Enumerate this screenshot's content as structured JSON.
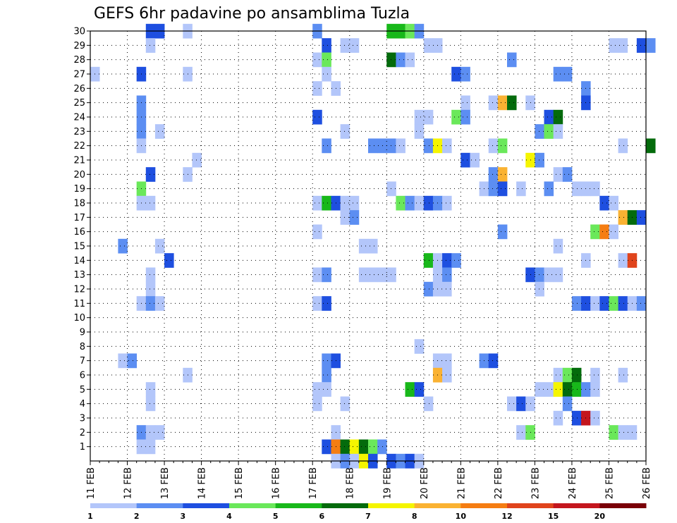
{
  "chart_data": {
    "type": "heatmap",
    "title": "GEFS 6hr padavine po ansamblima Tuzla",
    "xlabel": "",
    "ylabel": "",
    "x_ticks": [
      "11 FEB",
      "12 FEB",
      "13 FEB",
      "14 FEB",
      "15 FEB",
      "16 FEB",
      "17 FEB",
      "18 FEB",
      "19 FEB",
      "20 FEB",
      "21 FEB",
      "22 FEB",
      "23 FEB",
      "24 FEB",
      "25 FEB",
      "26 FEB"
    ],
    "y_ticks": [
      1,
      2,
      3,
      4,
      5,
      6,
      7,
      8,
      9,
      10,
      11,
      12,
      13,
      14,
      15,
      16,
      17,
      18,
      19,
      20,
      21,
      22,
      23,
      24,
      25,
      26,
      27,
      28,
      29,
      30
    ],
    "x_range_days": [
      11,
      26
    ],
    "y_range": [
      0,
      30
    ],
    "grid": "dotted",
    "colorbar": {
      "labels": [
        "1",
        "2",
        "3",
        "4",
        "5",
        "6",
        "7",
        "8",
        "10",
        "12",
        "15",
        "20"
      ],
      "colors": [
        "#b3c6fa",
        "#5c8ef2",
        "#1e4fe0",
        "#6ae85a",
        "#18b81a",
        "#046b0c",
        "#f5f500",
        "#fab232",
        "#f57d12",
        "#e0441c",
        "#c4161e",
        "#7a0008"
      ]
    },
    "cells": [
      [
        30,
        12.5,
        2
      ],
      [
        30,
        12.75,
        2
      ],
      [
        30,
        13.5,
        0
      ],
      [
        30,
        17.0,
        1
      ],
      [
        30,
        19.0,
        4
      ],
      [
        30,
        19.25,
        4
      ],
      [
        30,
        19.5,
        3
      ],
      [
        30,
        19.75,
        1
      ],
      [
        29,
        12.5,
        0
      ],
      [
        29,
        17.25,
        2
      ],
      [
        29,
        17.75,
        0
      ],
      [
        29,
        18.0,
        0
      ],
      [
        29,
        20.0,
        0
      ],
      [
        29,
        20.25,
        0
      ],
      [
        29,
        25.0,
        0
      ],
      [
        29,
        25.25,
        0
      ],
      [
        29,
        25.75,
        2
      ],
      [
        29,
        26.0,
        1
      ],
      [
        28,
        17.0,
        0
      ],
      [
        28,
        17.25,
        3
      ],
      [
        28,
        19.0,
        5
      ],
      [
        28,
        19.25,
        1
      ],
      [
        28,
        19.5,
        0
      ],
      [
        28,
        22.25,
        1
      ],
      [
        27,
        11.0,
        0
      ],
      [
        27,
        12.25,
        2
      ],
      [
        27,
        13.5,
        0
      ],
      [
        27,
        17.25,
        0
      ],
      [
        27,
        20.75,
        2
      ],
      [
        27,
        21.0,
        1
      ],
      [
        27,
        23.5,
        1
      ],
      [
        27,
        23.75,
        1
      ],
      [
        26,
        17.0,
        0
      ],
      [
        26,
        17.5,
        0
      ],
      [
        26,
        24.25,
        1
      ],
      [
        25,
        12.25,
        1
      ],
      [
        25,
        21.0,
        0
      ],
      [
        25,
        21.75,
        0
      ],
      [
        25,
        22.0,
        7
      ],
      [
        25,
        22.25,
        5
      ],
      [
        25,
        22.75,
        0
      ],
      [
        25,
        24.25,
        2
      ],
      [
        24,
        12.25,
        1
      ],
      [
        24,
        17.0,
        2
      ],
      [
        24,
        19.75,
        0
      ],
      [
        24,
        20.0,
        0
      ],
      [
        24,
        20.75,
        3
      ],
      [
        24,
        21.0,
        1
      ],
      [
        24,
        23.25,
        2
      ],
      [
        24,
        23.5,
        5
      ],
      [
        23,
        12.25,
        1
      ],
      [
        23,
        12.75,
        0
      ],
      [
        23,
        17.75,
        0
      ],
      [
        23,
        19.75,
        0
      ],
      [
        23,
        23.0,
        1
      ],
      [
        23,
        23.25,
        3
      ],
      [
        23,
        23.5,
        0
      ],
      [
        22,
        12.25,
        0
      ],
      [
        22,
        17.25,
        1
      ],
      [
        22,
        18.5,
        1
      ],
      [
        22,
        18.75,
        1
      ],
      [
        22,
        19.0,
        1
      ],
      [
        22,
        19.25,
        0
      ],
      [
        22,
        20.0,
        1
      ],
      [
        22,
        20.25,
        6
      ],
      [
        22,
        20.5,
        0
      ],
      [
        22,
        21.75,
        0
      ],
      [
        22,
        22.0,
        3
      ],
      [
        22,
        25.25,
        0
      ],
      [
        22,
        26.0,
        5
      ],
      [
        21,
        13.75,
        0
      ],
      [
        21,
        21.0,
        2
      ],
      [
        21,
        21.25,
        0
      ],
      [
        21,
        22.75,
        6
      ],
      [
        21,
        23.0,
        1
      ],
      [
        20,
        12.5,
        2
      ],
      [
        20,
        13.5,
        0
      ],
      [
        20,
        21.75,
        1
      ],
      [
        20,
        22.0,
        7
      ],
      [
        20,
        23.5,
        0
      ],
      [
        20,
        23.75,
        1
      ],
      [
        19,
        12.25,
        3
      ],
      [
        19,
        19.0,
        0
      ],
      [
        19,
        21.5,
        0
      ],
      [
        19,
        21.75,
        1
      ],
      [
        19,
        22.0,
        2
      ],
      [
        19,
        22.5,
        0
      ],
      [
        19,
        23.25,
        1
      ],
      [
        19,
        24.0,
        0
      ],
      [
        19,
        24.25,
        0
      ],
      [
        19,
        24.5,
        0
      ],
      [
        18,
        12.25,
        0
      ],
      [
        18,
        12.5,
        0
      ],
      [
        18,
        17.0,
        0
      ],
      [
        18,
        17.25,
        4
      ],
      [
        18,
        17.5,
        2
      ],
      [
        18,
        17.75,
        0
      ],
      [
        18,
        18.0,
        0
      ],
      [
        18,
        19.25,
        3
      ],
      [
        18,
        19.5,
        1
      ],
      [
        18,
        19.75,
        0
      ],
      [
        18,
        20.0,
        2
      ],
      [
        18,
        20.25,
        1
      ],
      [
        18,
        20.5,
        0
      ],
      [
        18,
        24.75,
        2
      ],
      [
        18,
        25.0,
        0
      ],
      [
        17,
        17.75,
        0
      ],
      [
        17,
        18.0,
        1
      ],
      [
        17,
        25.25,
        7
      ],
      [
        17,
        25.5,
        5
      ],
      [
        17,
        25.75,
        2
      ],
      [
        16,
        17.0,
        0
      ],
      [
        16,
        22.0,
        1
      ],
      [
        16,
        24.5,
        3
      ],
      [
        16,
        24.75,
        8
      ],
      [
        16,
        25.0,
        0
      ],
      [
        15,
        11.75,
        1
      ],
      [
        15,
        12.75,
        0
      ],
      [
        15,
        18.25,
        0
      ],
      [
        15,
        18.5,
        0
      ],
      [
        15,
        23.5,
        0
      ],
      [
        14,
        13.0,
        2
      ],
      [
        14,
        20.0,
        4
      ],
      [
        14,
        20.25,
        0
      ],
      [
        14,
        20.5,
        2
      ],
      [
        14,
        20.75,
        1
      ],
      [
        14,
        24.25,
        0
      ],
      [
        14,
        25.25,
        0
      ],
      [
        14,
        25.5,
        9
      ],
      [
        13,
        12.5,
        0
      ],
      [
        13,
        17.0,
        0
      ],
      [
        13,
        17.25,
        1
      ],
      [
        13,
        18.25,
        0
      ],
      [
        13,
        18.5,
        0
      ],
      [
        13,
        18.75,
        0
      ],
      [
        13,
        19.0,
        0
      ],
      [
        13,
        20.25,
        0
      ],
      [
        13,
        20.5,
        1
      ],
      [
        13,
        22.75,
        2
      ],
      [
        13,
        23.0,
        1
      ],
      [
        13,
        23.25,
        0
      ],
      [
        13,
        23.5,
        0
      ],
      [
        12,
        12.5,
        0
      ],
      [
        12,
        20.0,
        1
      ],
      [
        12,
        20.25,
        0
      ],
      [
        12,
        20.5,
        0
      ],
      [
        12,
        23.0,
        0
      ],
      [
        11,
        12.25,
        0
      ],
      [
        11,
        12.5,
        1
      ],
      [
        11,
        12.75,
        0
      ],
      [
        11,
        17.0,
        0
      ],
      [
        11,
        17.25,
        2
      ],
      [
        11,
        24.0,
        1
      ],
      [
        11,
        24.25,
        2
      ],
      [
        11,
        24.5,
        0
      ],
      [
        11,
        24.75,
        2
      ],
      [
        11,
        25.0,
        3
      ],
      [
        11,
        25.25,
        2
      ],
      [
        11,
        25.5,
        0
      ],
      [
        11,
        25.75,
        1
      ],
      [
        8,
        19.75,
        0
      ],
      [
        7,
        11.75,
        0
      ],
      [
        7,
        12.0,
        1
      ],
      [
        7,
        17.25,
        1
      ],
      [
        7,
        17.5,
        2
      ],
      [
        7,
        20.25,
        0
      ],
      [
        7,
        20.5,
        0
      ],
      [
        7,
        21.5,
        1
      ],
      [
        7,
        21.75,
        2
      ],
      [
        6,
        13.5,
        0
      ],
      [
        6,
        17.25,
        1
      ],
      [
        6,
        20.25,
        7
      ],
      [
        6,
        20.5,
        0
      ],
      [
        6,
        23.5,
        0
      ],
      [
        6,
        23.75,
        3
      ],
      [
        6,
        24.0,
        5
      ],
      [
        6,
        24.5,
        0
      ],
      [
        6,
        25.25,
        0
      ],
      [
        5,
        12.5,
        0
      ],
      [
        5,
        17.0,
        0
      ],
      [
        5,
        17.25,
        0
      ],
      [
        5,
        19.5,
        4
      ],
      [
        5,
        19.75,
        2
      ],
      [
        5,
        23.0,
        0
      ],
      [
        5,
        23.25,
        0
      ],
      [
        5,
        23.5,
        6
      ],
      [
        5,
        23.75,
        5
      ],
      [
        5,
        24.0,
        4
      ],
      [
        5,
        24.25,
        1
      ],
      [
        5,
        24.5,
        0
      ],
      [
        4,
        12.5,
        0
      ],
      [
        4,
        17.0,
        0
      ],
      [
        4,
        17.75,
        0
      ],
      [
        4,
        20.0,
        0
      ],
      [
        4,
        22.25,
        0
      ],
      [
        4,
        22.5,
        2
      ],
      [
        4,
        22.75,
        0
      ],
      [
        4,
        23.75,
        1
      ],
      [
        3,
        23.5,
        0
      ],
      [
        3,
        24.0,
        2
      ],
      [
        3,
        24.25,
        10
      ],
      [
        3,
        24.5,
        0
      ],
      [
        2,
        12.25,
        1
      ],
      [
        2,
        12.5,
        0
      ],
      [
        2,
        12.75,
        0
      ],
      [
        2,
        17.5,
        0
      ],
      [
        2,
        22.5,
        0
      ],
      [
        2,
        22.75,
        3
      ],
      [
        2,
        25.0,
        3
      ],
      [
        2,
        25.25,
        0
      ],
      [
        2,
        25.5,
        0
      ],
      [
        1,
        12.25,
        0
      ],
      [
        1,
        12.5,
        0
      ],
      [
        1,
        17.25,
        2
      ],
      [
        1,
        17.5,
        8
      ],
      [
        1,
        17.75,
        5
      ],
      [
        1,
        18.0,
        6
      ],
      [
        1,
        18.25,
        5
      ],
      [
        1,
        18.5,
        3
      ],
      [
        1,
        18.75,
        1
      ],
      [
        0,
        17.5,
        0
      ],
      [
        0,
        17.75,
        1
      ],
      [
        0,
        18.0,
        0
      ],
      [
        0,
        18.25,
        6
      ],
      [
        0,
        18.5,
        2
      ],
      [
        0,
        19.0,
        2
      ],
      [
        0,
        19.25,
        1
      ],
      [
        0,
        19.5,
        2
      ],
      [
        0,
        19.75,
        0
      ]
    ]
  }
}
